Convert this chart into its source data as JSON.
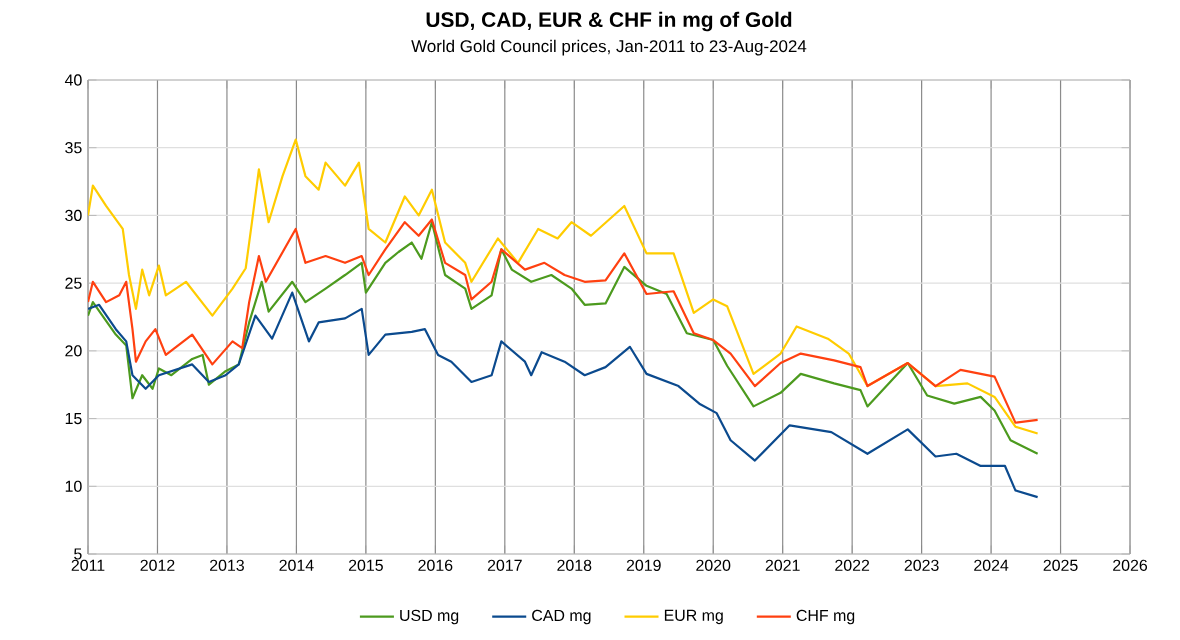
{
  "chart_data": {
    "type": "line",
    "title": "USD, CAD, EUR & CHF in mg of Gold",
    "subtitle": "World Gold Council prices, Jan-2011 to 23-Aug-2024",
    "xlim": [
      2011,
      2026
    ],
    "xticks": [
      2011,
      2012,
      2013,
      2014,
      2015,
      2016,
      2017,
      2018,
      2019,
      2020,
      2021,
      2022,
      2023,
      2024,
      2025,
      2026
    ],
    "ylim": [
      5,
      40
    ],
    "yticks": [
      5,
      10,
      15,
      20,
      25,
      30,
      35,
      40
    ],
    "grid": true,
    "legend": "bottom",
    "marker": "none",
    "line_style": "solid",
    "series": [
      {
        "name": "USD mg",
        "color": "#4c9a1e",
        "x": [
          2011.0,
          2011.07,
          2011.4,
          2011.55,
          2011.64,
          2011.78,
          2011.93,
          2012.02,
          2012.2,
          2012.5,
          2012.65,
          2012.74,
          2012.98,
          2013.17,
          2013.32,
          2013.5,
          2013.6,
          2013.94,
          2014.13,
          2014.42,
          2014.7,
          2014.94,
          2015.0,
          2015.28,
          2015.47,
          2015.66,
          2015.8,
          2015.95,
          2016.14,
          2016.43,
          2016.52,
          2016.81,
          2016.95,
          2017.1,
          2017.38,
          2017.67,
          2017.96,
          2018.15,
          2018.45,
          2018.72,
          2019.04,
          2019.33,
          2019.62,
          2020.0,
          2020.2,
          2020.58,
          2020.97,
          2021.26,
          2021.74,
          2022.12,
          2022.22,
          2022.8,
          2023.08,
          2023.47,
          2023.85,
          2024.05,
          2024.28,
          2024.67
        ],
        "values": [
          22.6,
          23.6,
          21.2,
          20.4,
          16.5,
          18.2,
          17.2,
          18.7,
          18.2,
          19.4,
          19.7,
          17.5,
          18.5,
          19.0,
          22.1,
          25.1,
          22.9,
          25.1,
          23.6,
          24.6,
          25.6,
          26.5,
          24.3,
          26.5,
          27.3,
          28.0,
          26.8,
          29.5,
          25.6,
          24.6,
          23.1,
          24.1,
          27.5,
          26.0,
          25.1,
          25.6,
          24.6,
          23.4,
          23.5,
          26.2,
          24.8,
          24.2,
          21.3,
          20.8,
          18.9,
          15.9,
          16.9,
          18.3,
          17.6,
          17.1,
          15.9,
          19.1,
          16.7,
          16.1,
          16.6,
          15.6,
          13.4,
          12.4
        ]
      },
      {
        "name": "CAD mg",
        "color": "#0b4a8e",
        "x": [
          2011.0,
          2011.16,
          2011.4,
          2011.55,
          2011.64,
          2011.83,
          2012.02,
          2012.5,
          2012.74,
          2012.98,
          2013.17,
          2013.41,
          2013.65,
          2013.94,
          2014.18,
          2014.32,
          2014.7,
          2014.94,
          2015.04,
          2015.28,
          2015.66,
          2015.85,
          2016.04,
          2016.23,
          2016.52,
          2016.81,
          2016.95,
          2017.29,
          2017.38,
          2017.53,
          2017.86,
          2018.15,
          2018.45,
          2018.8,
          2019.04,
          2019.5,
          2019.8,
          2020.05,
          2020.25,
          2020.6,
          2021.1,
          2021.7,
          2022.22,
          2022.8,
          2023.2,
          2023.5,
          2023.85,
          2024.2,
          2024.35,
          2024.67
        ],
        "values": [
          23.1,
          23.4,
          21.6,
          20.7,
          18.2,
          17.2,
          18.2,
          19.0,
          17.7,
          18.2,
          19.0,
          22.6,
          20.9,
          24.3,
          20.7,
          22.1,
          22.4,
          23.1,
          19.7,
          21.2,
          21.4,
          21.6,
          19.7,
          19.2,
          17.7,
          18.2,
          20.7,
          19.2,
          18.2,
          19.9,
          19.2,
          18.2,
          18.8,
          20.3,
          18.3,
          17.4,
          16.1,
          15.4,
          13.4,
          11.9,
          14.5,
          14.0,
          12.4,
          14.2,
          12.2,
          12.4,
          11.5,
          11.5,
          9.7,
          9.2
        ]
      },
      {
        "name": "EUR mg",
        "color": "#ffcc00",
        "x": [
          2011.0,
          2011.07,
          2011.26,
          2011.5,
          2011.59,
          2011.69,
          2011.78,
          2011.88,
          2012.02,
          2012.12,
          2012.41,
          2012.79,
          2013.08,
          2013.27,
          2013.36,
          2013.46,
          2013.6,
          2013.8,
          2013.99,
          2014.13,
          2014.32,
          2014.42,
          2014.7,
          2014.9,
          2015.04,
          2015.28,
          2015.56,
          2015.76,
          2015.95,
          2016.14,
          2016.43,
          2016.52,
          2016.9,
          2017.19,
          2017.48,
          2017.76,
          2017.96,
          2018.24,
          2018.72,
          2019.04,
          2019.43,
          2019.72,
          2020.0,
          2020.2,
          2020.58,
          2020.97,
          2021.2,
          2021.65,
          2021.95,
          2022.22,
          2022.8,
          2023.2,
          2023.66,
          2024.05,
          2024.35,
          2024.67
        ],
        "values": [
          30.0,
          32.2,
          30.7,
          29.0,
          25.6,
          23.1,
          26.0,
          24.1,
          26.3,
          24.1,
          25.1,
          22.6,
          24.6,
          26.1,
          29.5,
          33.4,
          29.5,
          32.9,
          35.6,
          32.9,
          31.9,
          33.9,
          32.2,
          33.9,
          29.0,
          28.0,
          31.4,
          30.0,
          31.9,
          28.0,
          26.5,
          25.1,
          28.3,
          26.5,
          29.0,
          28.3,
          29.5,
          28.5,
          30.7,
          27.2,
          27.2,
          22.8,
          23.8,
          23.3,
          18.3,
          19.8,
          21.8,
          20.9,
          19.8,
          17.4,
          19.1,
          17.4,
          17.6,
          16.6,
          14.4,
          13.9
        ]
      },
      {
        "name": "CHF mg",
        "color": "#ff4010",
        "x": [
          2011.0,
          2011.07,
          2011.26,
          2011.45,
          2011.55,
          2011.64,
          2011.69,
          2011.83,
          2011.97,
          2012.12,
          2012.5,
          2012.79,
          2013.08,
          2013.22,
          2013.32,
          2013.46,
          2013.56,
          2013.99,
          2014.13,
          2014.42,
          2014.7,
          2014.94,
          2015.04,
          2015.28,
          2015.56,
          2015.76,
          2015.95,
          2016.14,
          2016.43,
          2016.52,
          2016.81,
          2016.95,
          2017.29,
          2017.57,
          2017.86,
          2018.15,
          2018.45,
          2018.72,
          2019.04,
          2019.43,
          2019.72,
          2020.0,
          2020.25,
          2020.6,
          2020.97,
          2021.26,
          2021.74,
          2022.12,
          2022.22,
          2022.8,
          2023.2,
          2023.56,
          2024.05,
          2024.35,
          2024.67
        ],
        "values": [
          23.6,
          25.1,
          23.6,
          24.1,
          25.1,
          21.6,
          19.2,
          20.7,
          21.6,
          19.7,
          21.2,
          19.0,
          20.7,
          20.2,
          23.6,
          27.0,
          25.1,
          29.0,
          26.5,
          27.0,
          26.5,
          27.0,
          25.6,
          27.5,
          29.5,
          28.5,
          29.7,
          26.5,
          25.6,
          23.8,
          25.1,
          27.5,
          26.0,
          26.5,
          25.6,
          25.1,
          25.2,
          27.2,
          24.2,
          24.4,
          21.3,
          20.8,
          19.8,
          17.4,
          19.1,
          19.8,
          19.3,
          18.8,
          17.4,
          19.1,
          17.4,
          18.6,
          18.1,
          14.7,
          14.9
        ]
      }
    ]
  }
}
